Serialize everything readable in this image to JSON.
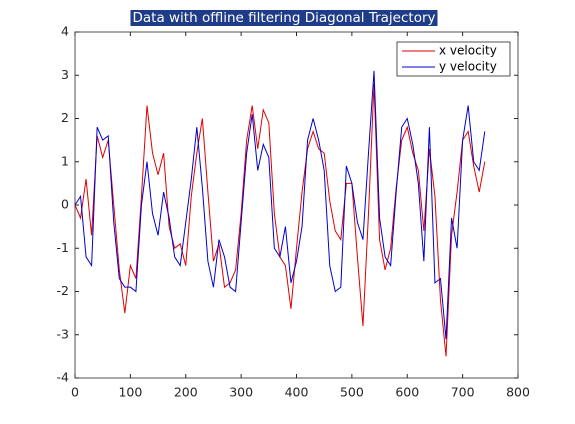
{
  "chart_data": {
    "type": "line",
    "title": "Data with offline filtering Diagonal Trajectory",
    "x": [
      0,
      10,
      20,
      30,
      40,
      50,
      60,
      70,
      80,
      90,
      100,
      110,
      120,
      130,
      140,
      150,
      160,
      170,
      180,
      190,
      200,
      210,
      220,
      230,
      240,
      250,
      260,
      270,
      280,
      290,
      300,
      310,
      320,
      330,
      340,
      350,
      360,
      370,
      380,
      390,
      400,
      410,
      420,
      430,
      440,
      450,
      460,
      470,
      480,
      490,
      500,
      510,
      520,
      530,
      540,
      550,
      560,
      570,
      580,
      590,
      600,
      610,
      620,
      630,
      640,
      650,
      660,
      670,
      680,
      690,
      700,
      710,
      720,
      730,
      740
    ],
    "series": [
      {
        "name": "x velocity",
        "color": "#e00000",
        "values": [
          0,
          -0.3,
          0.6,
          -0.7,
          1.6,
          1.1,
          1.5,
          0.0,
          -1.5,
          -2.5,
          -1.4,
          -1.7,
          0.2,
          2.3,
          1.2,
          0.7,
          1.2,
          -0.5,
          -1.0,
          -0.9,
          -1.4,
          0.2,
          1.2,
          2.0,
          0.3,
          -1.3,
          -0.9,
          -1.9,
          -1.8,
          -1.5,
          -0.2,
          1.5,
          2.3,
          1.3,
          2.2,
          1.9,
          -0.2,
          -1.2,
          -1.4,
          -2.4,
          -1.0,
          0.3,
          1.3,
          1.7,
          1.3,
          1.2,
          0.1,
          -0.6,
          -0.8,
          0.5,
          0.5,
          -1.2,
          -2.8,
          -0.2,
          2.8,
          -0.8,
          -1.5,
          -1.0,
          0.4,
          1.5,
          1.8,
          1.2,
          0.8,
          -0.6,
          1.3,
          0.2,
          -2.2,
          -3.5,
          -0.7,
          0.3,
          1.5,
          1.7,
          0.9,
          0.3,
          1.0
        ]
      },
      {
        "name": "y velocity",
        "color": "#0000d0",
        "values": [
          0,
          0.2,
          -1.2,
          -1.4,
          1.8,
          1.5,
          1.6,
          -0.4,
          -1.7,
          -1.9,
          -1.9,
          -2.0,
          0.0,
          1.0,
          -0.2,
          -0.7,
          0.3,
          -0.3,
          -1.2,
          -1.4,
          -0.4,
          0.6,
          1.8,
          0.4,
          -1.3,
          -1.9,
          -0.8,
          -1.2,
          -1.9,
          -2.0,
          -0.4,
          1.2,
          2.1,
          0.8,
          1.4,
          1.1,
          -1.0,
          -1.2,
          -0.5,
          -1.8,
          -1.3,
          -0.5,
          1.5,
          2.0,
          1.5,
          0.8,
          -1.4,
          -2.0,
          -1.9,
          0.9,
          0.5,
          -0.4,
          -0.8,
          1.2,
          3.1,
          -0.3,
          -1.2,
          -1.4,
          0.3,
          1.8,
          2.0,
          1.4,
          0.5,
          -1.3,
          1.8,
          -1.8,
          -1.7,
          -3.1,
          -0.3,
          -1.0,
          1.5,
          2.3,
          1.0,
          0.8,
          1.7
        ]
      }
    ],
    "xlim": [
      0,
      800
    ],
    "xticks": [
      0,
      100,
      200,
      300,
      400,
      500,
      600,
      700,
      800
    ],
    "ylim": [
      -4,
      4
    ],
    "yticks": [
      -4,
      -3,
      -2,
      -1,
      0,
      1,
      2,
      3,
      4
    ],
    "legend": "top-right"
  }
}
